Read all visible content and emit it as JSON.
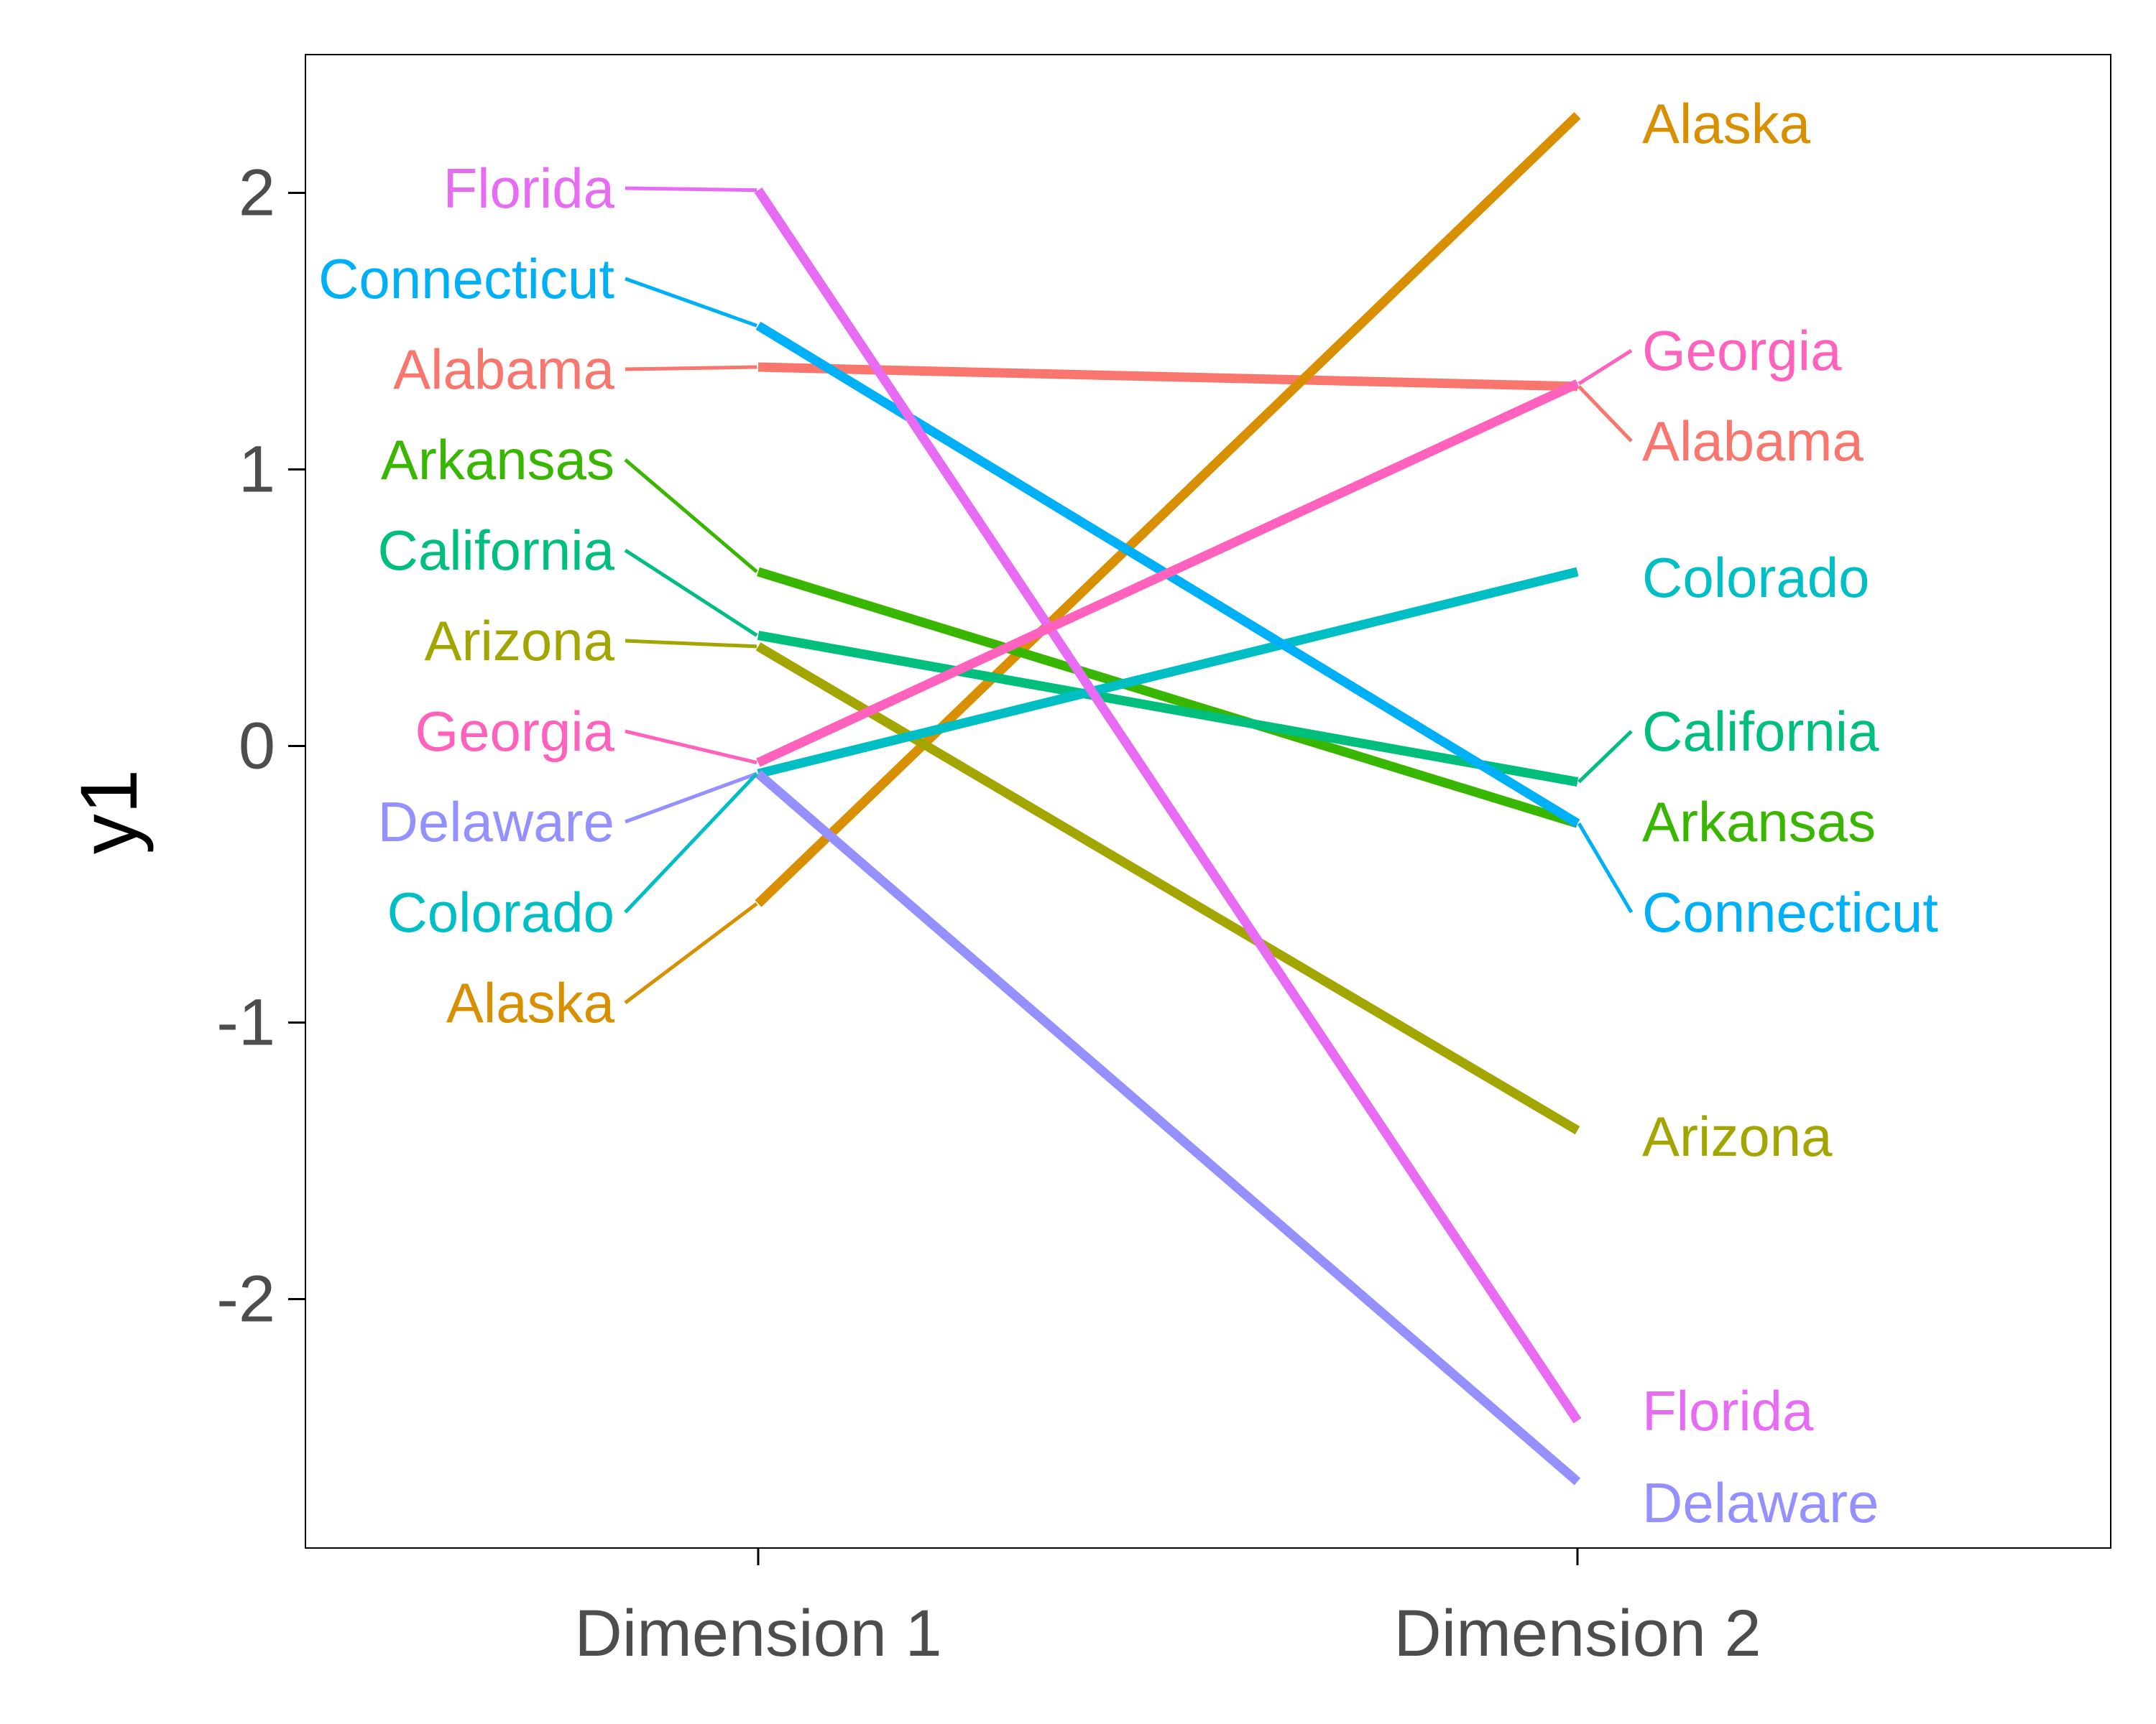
{
  "chart_data": {
    "type": "line",
    "title": "",
    "xlabel": "",
    "ylabel": "y1",
    "categories": [
      "Dimension 1",
      "Dimension 2"
    ],
    "yticks": [
      "-2",
      "-1",
      "0",
      "1",
      "2"
    ],
    "ylim": [
      -2.9,
      2.5
    ],
    "grid": false,
    "legend": "none (labels placed at line ends)",
    "series": [
      {
        "name": "Alabama",
        "color": "#F8766D",
        "values": [
          1.37,
          1.3
        ]
      },
      {
        "name": "Alaska",
        "color": "#D89000",
        "values": [
          -0.57,
          2.28
        ]
      },
      {
        "name": "Arizona",
        "color": "#A3A500",
        "values": [
          0.36,
          -1.39
        ]
      },
      {
        "name": "Arkansas",
        "color": "#39B600",
        "values": [
          0.63,
          -0.28
        ]
      },
      {
        "name": "California",
        "color": "#00BF7D",
        "values": [
          0.4,
          -0.13
        ]
      },
      {
        "name": "Colorado",
        "color": "#00BFC4",
        "values": [
          -0.1,
          0.63
        ]
      },
      {
        "name": "Connecticut",
        "color": "#00B0F6",
        "values": [
          1.52,
          -0.28
        ]
      },
      {
        "name": "Delaware",
        "color": "#9590FF",
        "values": [
          -0.1,
          -2.66
        ]
      },
      {
        "name": "Florida",
        "color": "#E76BF3",
        "values": [
          2.01,
          -2.44
        ]
      },
      {
        "name": "Georgia",
        "color": "#FF62BC",
        "values": [
          -0.06,
          1.31
        ]
      }
    ],
    "labels_left": [
      "Florida",
      "Connecticut",
      "Alabama",
      "Arkansas",
      "California",
      "Arizona",
      "Georgia",
      "Delaware",
      "Colorado",
      "Alaska"
    ],
    "labels_right": [
      "Alaska",
      "Georgia",
      "Alabama",
      "Colorado",
      "California",
      "Arkansas",
      "Connecticut",
      "Arizona",
      "Florida",
      "Delaware"
    ]
  }
}
